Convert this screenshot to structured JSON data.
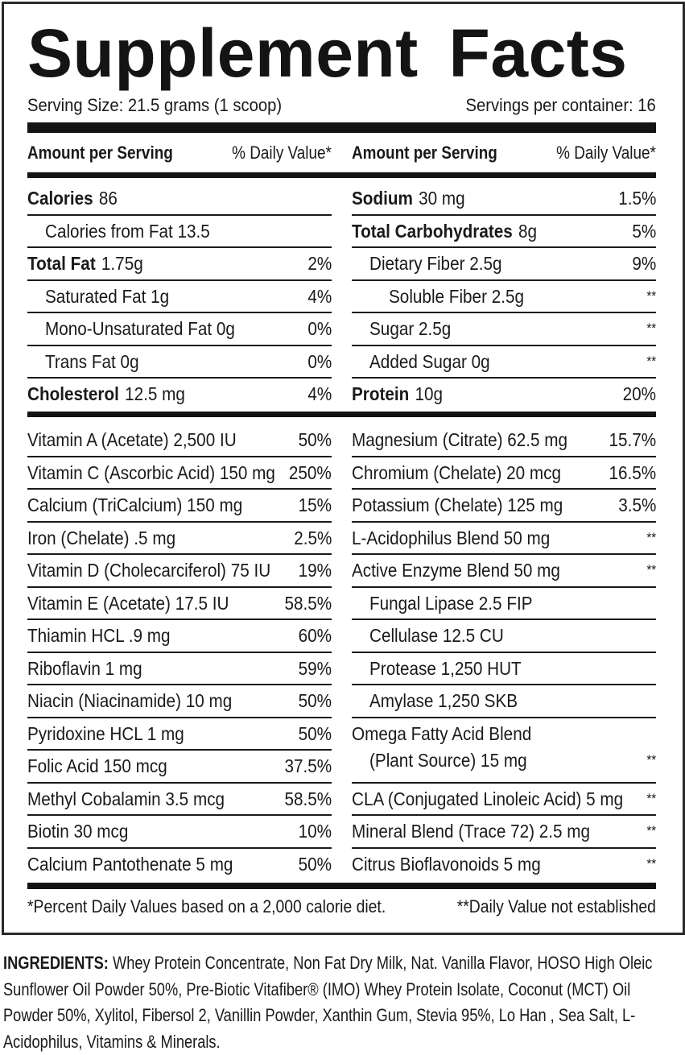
{
  "title": "Supplement Facts",
  "serving": {
    "size": "Serving Size:  21.5 grams (1 scoop)",
    "per_container": "Servings per container:  16"
  },
  "header": {
    "amount": "Amount per Serving",
    "dv": "% Daily Value*"
  },
  "macros_left": [
    {
      "bold": "Calories",
      "name": "86",
      "dv": "",
      "indent": 0
    },
    {
      "bold": "",
      "name": "Calories from Fat  13.5",
      "dv": "",
      "indent": 1
    },
    {
      "bold": "Total Fat",
      "name": "1.75g",
      "dv": "2%",
      "indent": 0
    },
    {
      "bold": "",
      "name": "Saturated Fat  1g",
      "dv": "4%",
      "indent": 1
    },
    {
      "bold": "",
      "name": "Mono-Unsaturated Fat  0g",
      "dv": "0%",
      "indent": 1
    },
    {
      "bold": "",
      "name": "Trans Fat  0g",
      "dv": "0%",
      "indent": 1
    },
    {
      "bold": "Cholesterol",
      "name": "12.5 mg",
      "dv": "4%",
      "indent": 0
    }
  ],
  "macros_right": [
    {
      "bold": "Sodium",
      "name": "30 mg",
      "dv": "1.5%",
      "indent": 0
    },
    {
      "bold": "Total Carbohydrates",
      "name": "8g",
      "dv": "5%",
      "indent": 0
    },
    {
      "bold": "",
      "name": "Dietary Fiber  2.5g",
      "dv": "9%",
      "indent": 1
    },
    {
      "bold": "",
      "name": "Soluble Fiber  2.5g",
      "dv": "**",
      "indent": 2
    },
    {
      "bold": "",
      "name": "Sugar  2.5g",
      "dv": "**",
      "indent": 1
    },
    {
      "bold": "",
      "name": "Added Sugar  0g",
      "dv": "**",
      "indent": 1
    },
    {
      "bold": "Protein",
      "name": "10g",
      "dv": "20%",
      "indent": 0
    }
  ],
  "micros_left": [
    {
      "name": "Vitamin A (Acetate) 2,500 IU",
      "dv": "50%"
    },
    {
      "name": "Vitamin C (Ascorbic Acid) 150 mg",
      "dv": "250%"
    },
    {
      "name": "Calcium (TriCalcium) 150 mg",
      "dv": "15%"
    },
    {
      "name": "Iron (Chelate) .5 mg",
      "dv": "2.5%"
    },
    {
      "name": "Vitamin D (Cholecarciferol) 75 IU",
      "dv": "19%"
    },
    {
      "name": "Vitamin E (Acetate) 17.5 IU",
      "dv": "58.5%"
    },
    {
      "name": "Thiamin HCL .9 mg",
      "dv": "60%"
    },
    {
      "name": "Riboflavin 1 mg",
      "dv": "59%"
    },
    {
      "name": "Niacin (Niacinamide) 10 mg",
      "dv": "50%"
    },
    {
      "name": "Pyridoxine HCL 1 mg",
      "dv": "50%"
    },
    {
      "name": "Folic Acid 150 mcg",
      "dv": "37.5%"
    },
    {
      "name": "Methyl Cobalamin 3.5 mcg",
      "dv": "58.5%"
    },
    {
      "name": "Biotin 30 mcg",
      "dv": "10%"
    },
    {
      "name": "Calcium Pantothenate 5 mg",
      "dv": "50%"
    }
  ],
  "micros_right": [
    {
      "name": "Magnesium (Citrate) 62.5 mg",
      "dv": "15.7%",
      "indent": 0
    },
    {
      "name": "Chromium (Chelate) 20 mcg",
      "dv": "16.5%",
      "indent": 0
    },
    {
      "name": "Potassium (Chelate) 125 mg",
      "dv": "3.5%",
      "indent": 0
    },
    {
      "name": "L-Acidophilus Blend 50 mg",
      "dv": "**",
      "indent": 0
    },
    {
      "name": "Active Enzyme Blend 50 mg",
      "dv": "**",
      "indent": 0
    },
    {
      "name": "Fungal Lipase 2.5 FIP",
      "dv": "",
      "indent": 1
    },
    {
      "name": "Cellulase 12.5 CU",
      "dv": "",
      "indent": 1
    },
    {
      "name": "Protease 1,250 HUT",
      "dv": "",
      "indent": 1
    },
    {
      "name": "Amylase 1,250 SKB",
      "dv": "",
      "indent": 1
    },
    {
      "name": "Omega Fatty Acid Blend",
      "name2": "(Plant Source) 15 mg",
      "dv": "**",
      "indent": 0
    },
    {
      "name": "CLA (Conjugated Linoleic Acid) 5 mg",
      "dv": "**",
      "indent": 0
    },
    {
      "name": "Mineral Blend (Trace 72) 2.5 mg",
      "dv": "**",
      "indent": 0
    },
    {
      "name": "Citrus Bioflavonoids 5 mg",
      "dv": "**",
      "indent": 0
    }
  ],
  "footnote": {
    "left": "*Percent Daily Values based on a 2,000 calorie diet.",
    "right": "**Daily Value not established"
  },
  "ingredients": {
    "label": "INGREDIENTS:",
    "text": " Whey Protein Concentrate, Non Fat Dry Milk, Nat. Vanilla Flavor, HOSO High Oleic Sunflower Oil Powder 50%, Pre-Biotic Vitafiber® (IMO) Whey Protein Isolate, Coconut (MCT) Oil Powder 50%, Xylitol, Fibersol 2, Vanillin Powder, Xanthin Gum, Stevia 95%, Lo Han , Sea Salt, L-Acidophilus, Vitamins & Minerals."
  }
}
